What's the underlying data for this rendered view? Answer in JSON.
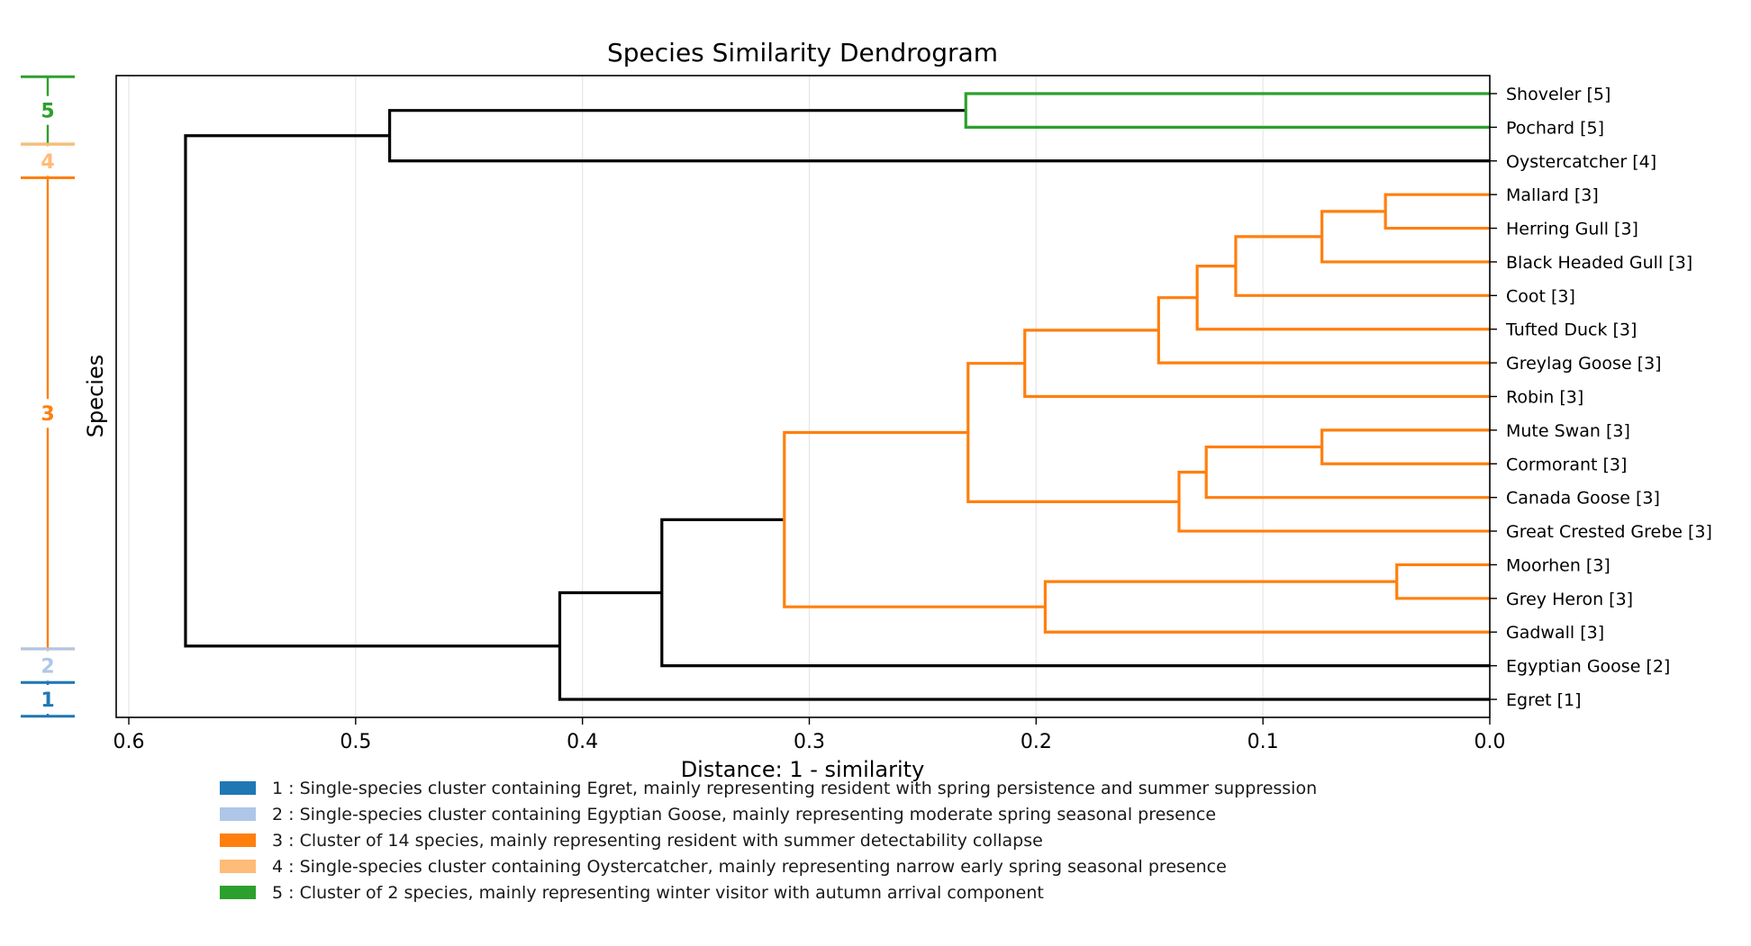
{
  "chart_data": {
    "type": "dendrogram",
    "title": "Species Similarity Dendrogram",
    "xlabel": "Distance: 1 - similarity",
    "ylabel": "Species",
    "xlim": [
      0.6,
      0.0
    ],
    "xticks": [
      0.6,
      0.5,
      0.4,
      0.3,
      0.2,
      0.1,
      0.0
    ],
    "xtick_labels": [
      "0.6",
      "0.5",
      "0.4",
      "0.3",
      "0.2",
      "0.1",
      "0.0"
    ],
    "grid": "vertical",
    "leaves": [
      {
        "label": "Shoveler [5]",
        "cluster": 5
      },
      {
        "label": "Pochard [5]",
        "cluster": 5
      },
      {
        "label": "Oystercatcher [4]",
        "cluster": 4
      },
      {
        "label": "Mallard [3]",
        "cluster": 3
      },
      {
        "label": "Herring Gull [3]",
        "cluster": 3
      },
      {
        "label": "Black Headed Gull [3]",
        "cluster": 3
      },
      {
        "label": "Coot [3]",
        "cluster": 3
      },
      {
        "label": "Tufted Duck [3]",
        "cluster": 3
      },
      {
        "label": "Greylag Goose [3]",
        "cluster": 3
      },
      {
        "label": "Robin [3]",
        "cluster": 3
      },
      {
        "label": "Mute Swan [3]",
        "cluster": 3
      },
      {
        "label": "Cormorant [3]",
        "cluster": 3
      },
      {
        "label": "Canada Goose [3]",
        "cluster": 3
      },
      {
        "label": "Great Crested Grebe [3]",
        "cluster": 3
      },
      {
        "label": "Moorhen [3]",
        "cluster": 3
      },
      {
        "label": "Grey Heron [3]",
        "cluster": 3
      },
      {
        "label": "Gadwall [3]",
        "cluster": 3
      },
      {
        "label": "Egyptian Goose [2]",
        "cluster": 2
      },
      {
        "label": "Egret [1]",
        "cluster": 1
      }
    ],
    "merges": [
      {
        "left": "Shoveler [5]",
        "right": "Pochard [5]",
        "distance": 0.231,
        "cluster": 5
      },
      {
        "left": "Shoveler + Pochard",
        "right": "Oystercatcher [4]",
        "distance": 0.485,
        "cluster": "above"
      },
      {
        "left": "Mallard [3]",
        "right": "Herring Gull [3]",
        "distance": 0.046,
        "cluster": 3
      },
      {
        "left": "Mallard + Herring Gull",
        "right": "Black Headed Gull [3]",
        "distance": 0.074,
        "cluster": 3
      },
      {
        "left": "prev",
        "right": "Coot [3]",
        "distance": 0.112,
        "cluster": 3
      },
      {
        "left": "prev",
        "right": "Tufted Duck [3]",
        "distance": 0.129,
        "cluster": 3
      },
      {
        "left": "prev",
        "right": "Greylag Goose [3]",
        "distance": 0.146,
        "cluster": 3
      },
      {
        "left": "prev",
        "right": "Robin [3]",
        "distance": 0.205,
        "cluster": 3
      },
      {
        "left": "Mute Swan [3]",
        "right": "Cormorant [3]",
        "distance": 0.074,
        "cluster": 3
      },
      {
        "left": "Mute Swan + Cormorant",
        "right": "Canada Goose [3]",
        "distance": 0.125,
        "cluster": 3
      },
      {
        "left": "prev",
        "right": "Great Crested Grebe [3]",
        "distance": 0.137,
        "cluster": 3
      },
      {
        "left": "Robin group",
        "right": "Great Crested Grebe group",
        "distance": 0.23,
        "cluster": 3
      },
      {
        "left": "Moorhen [3]",
        "right": "Grey Heron [3]",
        "distance": 0.041,
        "cluster": 3
      },
      {
        "left": "Moorhen + Grey Heron",
        "right": "Gadwall [3]",
        "distance": 0.196,
        "cluster": 3
      },
      {
        "left": "Robin + Grebe group",
        "right": "Gadwall group",
        "distance": 0.311,
        "cluster": 3
      },
      {
        "left": "cluster 3",
        "right": "Egyptian Goose [2]",
        "distance": 0.365,
        "cluster": "above"
      },
      {
        "left": "prev",
        "right": "Egret [1]",
        "distance": 0.41,
        "cluster": "above"
      },
      {
        "left": "Shoveler + Pochard + Oystercatcher",
        "right": "all others",
        "distance": 0.575,
        "cluster": "above"
      }
    ],
    "above_threshold_color": "#000000",
    "clusters": [
      {
        "id": 1,
        "label": "1",
        "color": "#1f77b4",
        "description": "1 : Single-species cluster containing Egret, mainly representing resident with spring persistence and summer suppression"
      },
      {
        "id": 2,
        "label": "2",
        "color": "#aec7e8",
        "description": "2 : Single-species cluster containing Egyptian Goose, mainly representing moderate spring seasonal presence"
      },
      {
        "id": 3,
        "label": "3",
        "color": "#ff7f0e",
        "description": "3 : Cluster of 14 species, mainly representing resident with summer detectability collapse"
      },
      {
        "id": 4,
        "label": "4",
        "color": "#ffbb78",
        "description": "4 : Single-species cluster containing Oystercatcher, mainly representing narrow early spring seasonal presence"
      },
      {
        "id": 5,
        "label": "5",
        "color": "#2ca02c",
        "description": "5 : Cluster of 2 species, mainly representing winter visitor with autumn arrival component"
      }
    ],
    "legend_position": "bottom"
  }
}
